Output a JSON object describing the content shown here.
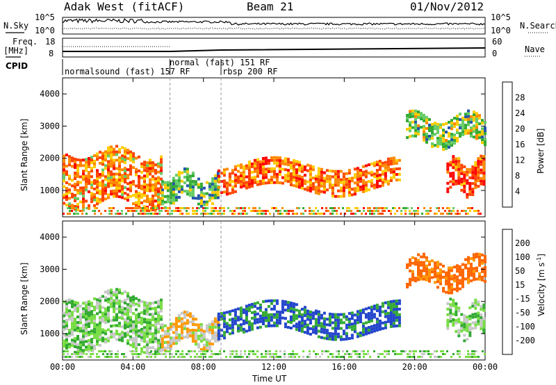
{
  "header": {
    "station": "Adak West (fitACF)",
    "beam": "Beam 21",
    "date": "01/Nov/2012"
  },
  "summary_panel": {
    "left_label": "N.Sky",
    "left_ticks": [
      "10^5",
      "10^0"
    ],
    "right_label": "N.Search",
    "right_ticks": [
      "10^5",
      "10^0"
    ]
  },
  "freq_panel": {
    "left_label_line1": "Freq.",
    "left_label_line2": "[MHz]",
    "left_ticks": [
      "18",
      "8"
    ],
    "right_label": "Nave",
    "right_ticks": [
      "60",
      "0"
    ]
  },
  "cpid_panel": {
    "label": "CPID",
    "segments": [
      "normalsound (fast) 157 RF",
      "normal (fast) 151 RF",
      "rbsp 200 RF"
    ]
  },
  "colors": {
    "power_scale": [
      "#0000ff",
      "#2255aa",
      "#33aa33",
      "#66cc66",
      "#ffcc00",
      "#ff8800",
      "#ff4400",
      "#ff0000"
    ],
    "velocity_scale": [
      "#0000ff",
      "#2244cc",
      "#33aa33",
      "#77dd44",
      "#c8c8c8",
      "#ff9900",
      "#ff6600",
      "#ff0000"
    ]
  },
  "chart_data": [
    {
      "type": "heatmap",
      "name": "power",
      "xlabel": "Time UT",
      "ylabel": "Slant Range [km]",
      "colorbar_label": "Power [dB]",
      "x_ticks": [
        "00:00",
        "04:00",
        "08:00",
        "12:00",
        "16:00",
        "20:00",
        "00:00"
      ],
      "y_ticks": [
        1000,
        2000,
        3000,
        4000
      ],
      "ylim": [
        180,
        4500
      ],
      "colorbar_ticks": [
        4,
        8,
        12,
        16,
        20,
        24,
        28
      ],
      "colorbar_range": [
        0,
        32
      ],
      "features": [
        {
          "t0": 0.0,
          "t1": 5.6,
          "r0": 600,
          "r1": 2200,
          "level": 22
        },
        {
          "t0": 5.6,
          "t1": 8.8,
          "r0": 700,
          "r1": 1500,
          "level": 12
        },
        {
          "t0": 8.8,
          "t1": 19.2,
          "r0": 1000,
          "r1": 1850,
          "level": 24
        },
        {
          "t0": 21.8,
          "t1": 24.0,
          "r0": 1000,
          "r1": 1900,
          "level": 26
        },
        {
          "t0": 19.5,
          "t1": 24.0,
          "r0": 2500,
          "r1": 3300,
          "level": 14
        }
      ]
    },
    {
      "type": "heatmap",
      "name": "velocity",
      "xlabel": "Time UT",
      "ylabel": "Slant Range [km]",
      "colorbar_label": "Velocity [m s^-1]",
      "x_ticks": [
        "00:00",
        "04:00",
        "08:00",
        "12:00",
        "16:00",
        "20:00",
        "00:00"
      ],
      "y_ticks": [
        1000,
        2000,
        3000,
        4000
      ],
      "ylim": [
        180,
        4500
      ],
      "colorbar_ticks": [
        200,
        100,
        50,
        15,
        -15,
        -50,
        -100,
        -200
      ],
      "features": [
        {
          "t0": 0.0,
          "t1": 5.6,
          "r0": 600,
          "r1": 2200,
          "velocity": 0
        },
        {
          "t0": 5.6,
          "t1": 8.8,
          "r0": 700,
          "r1": 1500,
          "velocity": -40
        },
        {
          "t0": 8.8,
          "t1": 19.2,
          "r0": 1000,
          "r1": 1850,
          "velocity": 60
        },
        {
          "t0": 19.5,
          "t1": 24.0,
          "r0": 2500,
          "r1": 3300,
          "velocity": -120
        },
        {
          "t0": 21.8,
          "t1": 24.0,
          "r0": 1000,
          "r1": 1900,
          "velocity": 0
        }
      ]
    }
  ]
}
